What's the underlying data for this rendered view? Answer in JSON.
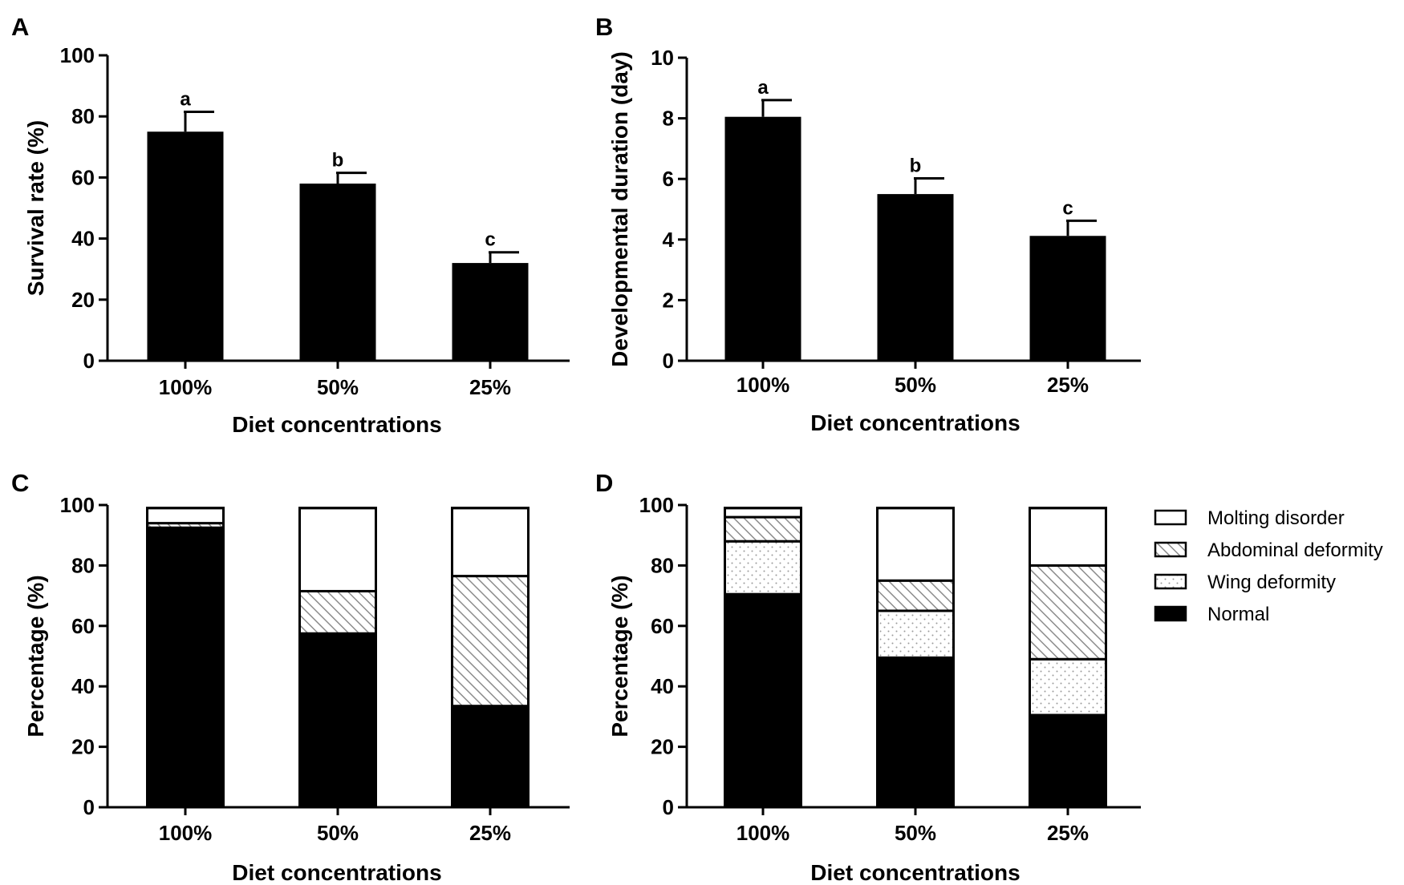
{
  "figure": {
    "legend": {
      "items": [
        {
          "key": "molting",
          "label": "Molting disorder",
          "pattern": "white"
        },
        {
          "key": "abdominal",
          "label": "Abdominal deformity",
          "pattern": "hatch"
        },
        {
          "key": "wing",
          "label": "Wing deformity",
          "pattern": "dots"
        },
        {
          "key": "normal",
          "label": "Normal",
          "pattern": "black"
        }
      ]
    }
  },
  "chart_data": [
    {
      "panel": "A",
      "type": "bar",
      "categories": [
        "100%",
        "50%",
        "25%"
      ],
      "values": [
        75,
        58,
        32
      ],
      "errors": [
        6.5,
        3.5,
        3.5
      ],
      "significance": [
        "a",
        "b",
        "c"
      ],
      "xlabel": "Diet concentrations",
      "ylabel": "Survival rate (%)",
      "ylim": [
        0,
        100
      ],
      "yticks": [
        0,
        20,
        40,
        60,
        80,
        100
      ],
      "ytick_labels": [
        "0",
        "20",
        "40",
        "60",
        "80",
        "100"
      ]
    },
    {
      "panel": "B",
      "type": "bar",
      "categories": [
        "100%",
        "50%",
        "25%"
      ],
      "values": [
        8.05,
        5.5,
        4.12
      ],
      "errors": [
        0.55,
        0.52,
        0.5
      ],
      "significance": [
        "a",
        "b",
        "c"
      ],
      "xlabel": "Diet concentrations",
      "ylabel": "Developmental duration (day)",
      "ylim": [
        0,
        10
      ],
      "yticks": [
        0,
        2,
        4,
        6,
        8,
        10
      ],
      "ytick_labels": [
        "0",
        "2",
        "4",
        "6",
        "8",
        "10"
      ]
    },
    {
      "panel": "C",
      "type": "stacked-bar",
      "categories": [
        "100%",
        "50%",
        "25%"
      ],
      "series": [
        {
          "name": "Normal",
          "key": "normal",
          "values": [
            92.5,
            57.5,
            33.5
          ]
        },
        {
          "name": "Wing deformity",
          "key": "wing",
          "values": [
            0,
            0,
            0
          ]
        },
        {
          "name": "Abdominal deformity",
          "key": "abdominal",
          "values": [
            1.5,
            14,
            43
          ]
        },
        {
          "name": "Molting disorder",
          "key": "molting",
          "values": [
            5,
            27.5,
            22.5
          ]
        }
      ],
      "xlabel": "Diet concentrations",
      "ylabel": "Percentage (%)",
      "ylim": [
        0,
        100
      ],
      "yticks": [
        0,
        20,
        40,
        60,
        80,
        100
      ],
      "ytick_labels": [
        "0",
        "20",
        "40",
        "60",
        "80",
        "100"
      ]
    },
    {
      "panel": "D",
      "type": "stacked-bar",
      "categories": [
        "100%",
        "50%",
        "25%"
      ],
      "series": [
        {
          "name": "Normal",
          "key": "normal",
          "values": [
            70.5,
            49.5,
            30.5
          ]
        },
        {
          "name": "Wing deformity",
          "key": "wing",
          "values": [
            17.5,
            15.5,
            18.5
          ]
        },
        {
          "name": "Abdominal deformity",
          "key": "abdominal",
          "values": [
            8,
            10,
            31
          ]
        },
        {
          "name": "Molting disorder",
          "key": "molting",
          "values": [
            3,
            24,
            19
          ]
        }
      ],
      "xlabel": "Diet concentrations",
      "ylabel": "Percentage (%)",
      "ylim": [
        0,
        100
      ],
      "yticks": [
        0,
        20,
        40,
        60,
        80,
        100
      ],
      "ytick_labels": [
        "0",
        "20",
        "40",
        "60",
        "80",
        "100"
      ]
    }
  ]
}
